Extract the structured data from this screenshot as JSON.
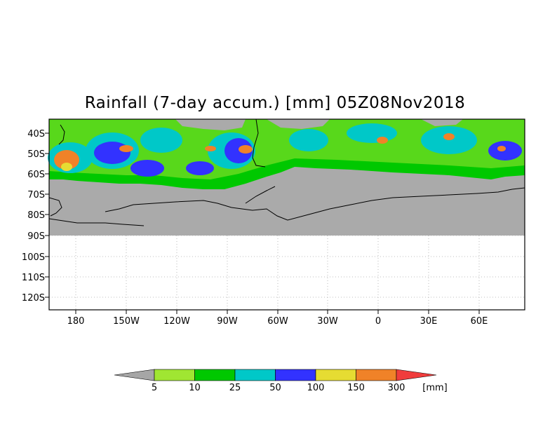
{
  "title": "Rainfall (7-day accum.) [mm] 05Z08Nov2018",
  "map": {
    "lat_labels": [
      "40S",
      "50S",
      "60S",
      "70S",
      "80S",
      "90S",
      "100S",
      "110S",
      "120S"
    ],
    "lon_labels": [
      "180",
      "150W",
      "120W",
      "90W",
      "60W",
      "30W",
      "0",
      "30E",
      "60E"
    ],
    "no_data_color": "#aaaaaa",
    "plot_background": "#ffffff",
    "grid": "dotted"
  },
  "legend": {
    "unit": "[mm]",
    "thresholds": [
      "5",
      "10",
      "25",
      "50",
      "100",
      "150",
      "300"
    ],
    "colors": [
      "#a6a6a6",
      "#a0e632",
      "#00c800",
      "#00c8c8",
      "#3232ff",
      "#e6dc32",
      "#f08228",
      "#f03c3c"
    ]
  }
}
